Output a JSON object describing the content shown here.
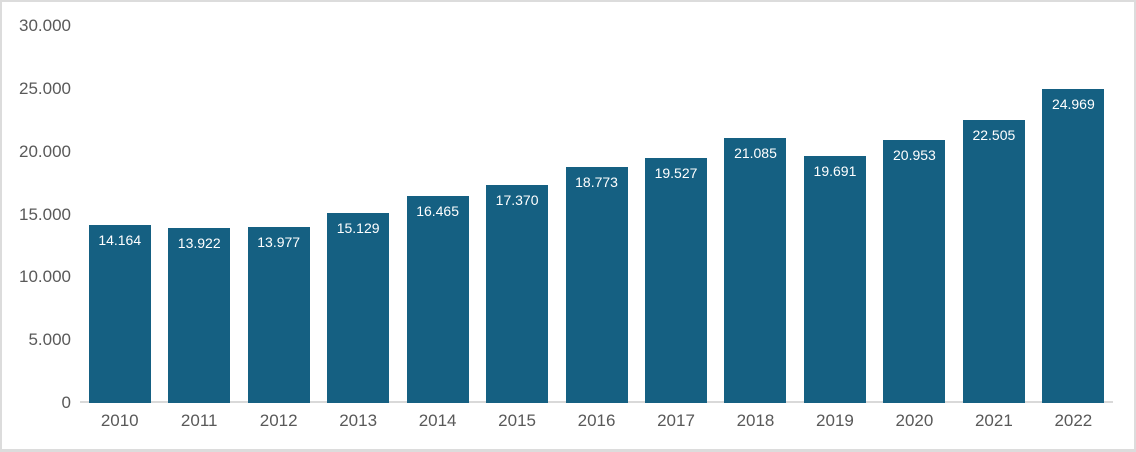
{
  "chart_data": {
    "type": "bar",
    "title": "",
    "xlabel": "",
    "ylabel": "",
    "categories": [
      "2010",
      "2011",
      "2012",
      "2013",
      "2014",
      "2015",
      "2016",
      "2017",
      "2018",
      "2019",
      "2020",
      "2021",
      "2022"
    ],
    "values": [
      14164,
      13922,
      13977,
      15129,
      16465,
      17370,
      18773,
      19527,
      21085,
      19691,
      20953,
      22505,
      24969
    ],
    "value_labels": [
      "14.164",
      "13.922",
      "13.977",
      "15.129",
      "16.465",
      "17.370",
      "18.773",
      "19.527",
      "21.085",
      "19.691",
      "20.953",
      "22.505",
      "24.969"
    ],
    "y_ticks": [
      0,
      5000,
      10000,
      15000,
      20000,
      25000,
      30000
    ],
    "y_tick_labels": [
      "0",
      "5.000",
      "10.000",
      "15.000",
      "20.000",
      "25.000",
      "30.000"
    ],
    "ylim": [
      0,
      30000
    ],
    "grid": "off",
    "legend": "none",
    "bar_color": "#156082",
    "data_label_color": "#ffffff",
    "axis_text_color": "#595959",
    "axis_line_color": "#d9d9d9",
    "frame_border_color": "#dcdcdc",
    "background_color": "#ffffff"
  }
}
